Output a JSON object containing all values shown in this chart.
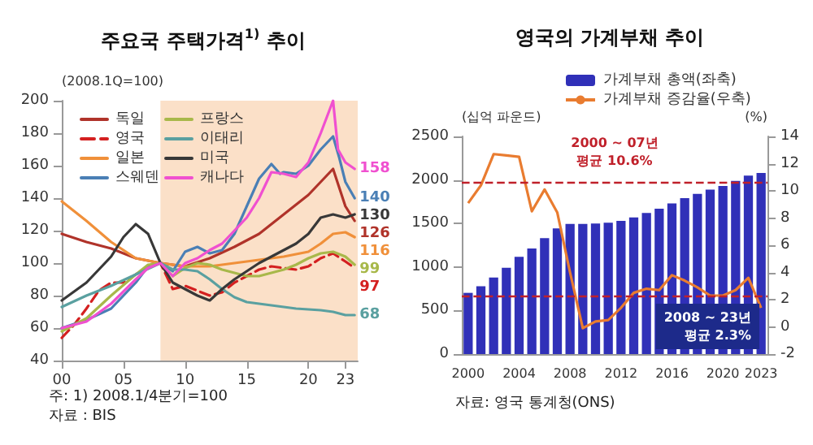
{
  "chart_data": [
    {
      "type": "line",
      "title": "주요국 주택가격$^{1)}$ 추이",
      "ylabel": "(2008.1Q=100)",
      "xlim": [
        2000,
        2024
      ],
      "xticks": [
        {
          "value": 2000,
          "label": "00"
        },
        {
          "value": 2005,
          "label": "05"
        },
        {
          "value": 2010,
          "label": "10"
        },
        {
          "value": 2015,
          "label": "15"
        },
        {
          "value": 2020,
          "label": "20"
        },
        {
          "value": 2023,
          "label": "23"
        }
      ],
      "ylim": [
        40,
        200
      ],
      "yticks": [
        40,
        60,
        80,
        100,
        120,
        140,
        160,
        180,
        200
      ],
      "grid": false,
      "legend": "top left",
      "marker": "none",
      "bands": [
        {
          "axis": "x",
          "from": 2008,
          "to": 2024,
          "color": "#fbe0c8"
        }
      ],
      "annotations": [
        "주: 1) 2008.1/4분기=100",
        "자료 : BIS"
      ],
      "series": [
        {
          "name": "독일",
          "color": "#b0332a",
          "x": [
            2000,
            2002,
            2004,
            2006,
            2008,
            2010,
            2012,
            2014,
            2016,
            2018,
            2020,
            2021,
            2022,
            2023,
            2023.75
          ],
          "values": [
            118,
            113,
            109,
            103,
            100,
            98,
            103,
            110,
            118,
            130,
            142,
            150,
            158,
            135,
            126
          ],
          "value_labels": [
            null,
            null,
            null,
            null,
            null,
            null,
            null,
            null,
            null,
            null,
            null,
            null,
            null,
            null,
            "126"
          ]
        },
        {
          "name": "영국",
          "color": "#d42020",
          "line_style": "dashed",
          "x": [
            2000,
            2001,
            2002,
            2003,
            2004,
            2005,
            2006,
            2007,
            2008,
            2009,
            2010,
            2011,
            2012,
            2013,
            2014,
            2015,
            2016,
            2017,
            2018,
            2019,
            2020,
            2021,
            2022,
            2023,
            2023.75
          ],
          "values": [
            54,
            62,
            72,
            83,
            88,
            88,
            93,
            98,
            100,
            84,
            86,
            83,
            80,
            82,
            88,
            92,
            96,
            98,
            97,
            96,
            98,
            103,
            106,
            101,
            97
          ],
          "value_labels": [
            null,
            null,
            null,
            null,
            null,
            null,
            null,
            null,
            null,
            null,
            null,
            null,
            null,
            null,
            null,
            null,
            null,
            null,
            null,
            null,
            null,
            null,
            null,
            null,
            "97"
          ]
        },
        {
          "name": "일본",
          "color": "#f0903a",
          "x": [
            2000,
            2002,
            2004,
            2006,
            2008,
            2010,
            2012,
            2014,
            2016,
            2018,
            2020,
            2021,
            2022,
            2023,
            2023.75
          ],
          "values": [
            138,
            126,
            113,
            103,
            100,
            98,
            98,
            100,
            102,
            104,
            107,
            112,
            118,
            119,
            116
          ],
          "value_labels": [
            null,
            null,
            null,
            null,
            null,
            null,
            null,
            null,
            null,
            null,
            null,
            null,
            null,
            null,
            "116"
          ]
        },
        {
          "name": "스웨덴",
          "color": "#4a7fb5",
          "x": [
            2000,
            2002,
            2004,
            2006,
            2007,
            2008,
            2009,
            2010,
            2011,
            2012,
            2013,
            2014,
            2015,
            2016,
            2017,
            2017.7,
            2018,
            2019,
            2020,
            2021,
            2022,
            2022.5,
            2023,
            2023.75
          ],
          "values": [
            60,
            65,
            72,
            88,
            98,
            100,
            95,
            107,
            110,
            106,
            108,
            118,
            135,
            152,
            161,
            155,
            156,
            155,
            160,
            170,
            178,
            165,
            150,
            140
          ],
          "value_labels": [
            null,
            null,
            null,
            null,
            null,
            null,
            null,
            null,
            null,
            null,
            null,
            null,
            null,
            null,
            null,
            null,
            null,
            null,
            null,
            null,
            null,
            null,
            null,
            "140"
          ]
        },
        {
          "name": "프랑스",
          "color": "#a8b84a",
          "x": [
            2000,
            2002,
            2004,
            2006,
            2007,
            2008,
            2009,
            2010,
            2011,
            2012,
            2013,
            2014,
            2015,
            2016,
            2017,
            2018,
            2019,
            2020,
            2021,
            2022,
            2023,
            2023.75
          ],
          "values": [
            58,
            66,
            80,
            93,
            99,
            100,
            92,
            97,
            100,
            99,
            96,
            94,
            92,
            92,
            94,
            96,
            99,
            103,
            106,
            107,
            104,
            99
          ],
          "value_labels": [
            null,
            null,
            null,
            null,
            null,
            null,
            null,
            null,
            null,
            null,
            null,
            null,
            null,
            null,
            null,
            null,
            null,
            null,
            null,
            null,
            null,
            "99"
          ]
        },
        {
          "name": "이태리",
          "color": "#5aa0a0",
          "x": [
            2000,
            2002,
            2004,
            2006,
            2008,
            2009,
            2010,
            2011,
            2012,
            2013,
            2014,
            2015,
            2017,
            2019,
            2021,
            2022,
            2023,
            2023.75
          ],
          "values": [
            73,
            80,
            86,
            93,
            100,
            96,
            96,
            95,
            90,
            84,
            79,
            76,
            74,
            72,
            71,
            70,
            68,
            68
          ],
          "value_labels": [
            null,
            null,
            null,
            null,
            null,
            null,
            null,
            null,
            null,
            null,
            null,
            null,
            null,
            null,
            null,
            null,
            null,
            "68"
          ]
        },
        {
          "name": "미국",
          "color": "#383838",
          "x": [
            2000,
            2002,
            2004,
            2005,
            2006,
            2007,
            2008,
            2009,
            2010,
            2011,
            2012,
            2013,
            2014,
            2015,
            2016,
            2017,
            2018,
            2019,
            2020,
            2021,
            2022,
            2023,
            2023.75
          ],
          "values": [
            77,
            88,
            104,
            116,
            124,
            118,
            100,
            88,
            84,
            80,
            77,
            84,
            90,
            95,
            100,
            104,
            108,
            112,
            118,
            128,
            130,
            128,
            130
          ],
          "value_labels": [
            null,
            null,
            null,
            null,
            null,
            null,
            null,
            null,
            null,
            null,
            null,
            null,
            null,
            null,
            null,
            null,
            null,
            null,
            null,
            null,
            null,
            null,
            "130"
          ]
        },
        {
          "name": "캐나다",
          "color": "#f050d0",
          "x": [
            2000,
            2002,
            2004,
            2006,
            2007,
            2008,
            2009,
            2010,
            2011,
            2012,
            2013,
            2014,
            2015,
            2016,
            2017,
            2018,
            2019,
            2020,
            2021,
            2022,
            2022.4,
            2023,
            2023.75
          ],
          "values": [
            60,
            64,
            75,
            90,
            97,
            100,
            92,
            100,
            103,
            108,
            112,
            120,
            128,
            140,
            156,
            155,
            153,
            162,
            180,
            200,
            170,
            162,
            158
          ],
          "value_labels": [
            null,
            null,
            null,
            null,
            null,
            null,
            null,
            null,
            null,
            null,
            null,
            null,
            null,
            null,
            null,
            null,
            null,
            null,
            null,
            null,
            null,
            null,
            "158"
          ]
        }
      ]
    },
    {
      "type": "bar",
      "title": "영국의 가계부채 추이",
      "ylabel": "(십억 파운드)",
      "y2label": "(%)",
      "categories": [
        "2000",
        null,
        null,
        null,
        "2004",
        null,
        null,
        null,
        "2008",
        null,
        null,
        null,
        "2012",
        null,
        null,
        null,
        "2016",
        null,
        null,
        null,
        "2020",
        null,
        null,
        "2023"
      ],
      "ylim": [
        0,
        2500
      ],
      "yticks": [
        0,
        500,
        1000,
        1500,
        2000,
        2500
      ],
      "y2lim": [
        -2,
        14
      ],
      "y2ticks": [
        -2,
        0,
        2,
        4,
        6,
        8,
        10,
        12,
        14
      ],
      "grid": false,
      "legend": "top",
      "ref_lines": [
        {
          "axis": "y2",
          "value": 10.6,
          "label": "2000 ~ 07년\n평균 10.6%",
          "color": "#c0202a",
          "line_style": "dashed"
        },
        {
          "axis": "y2",
          "value": 2.3,
          "label": "2008 ~ 23년\n평균 2.3%",
          "color": "#c0202a",
          "line_style": "dashed"
        }
      ],
      "annotations": [
        "자료: 영국 통계청(ONS)"
      ],
      "series": [
        {
          "name": "가계부채 총액(좌축)",
          "type": "bar",
          "color": "#3030b8",
          "values": [
            703,
            779,
            879,
            992,
            1118,
            1212,
            1331,
            1444,
            1495,
            1495,
            1500,
            1510,
            1530,
            1570,
            1620,
            1670,
            1730,
            1790,
            1840,
            1890,
            1930,
            1990,
            2050,
            2080
          ]
        },
        {
          "name": "가계부채 증감율(우축)",
          "type": "line",
          "axis": "y2",
          "marker": "none",
          "color": "#e97c30",
          "values": [
            9.1,
            10.4,
            12.7,
            12.6,
            12.5,
            8.5,
            10.1,
            8.4,
            4.0,
            -0.1,
            0.4,
            0.5,
            1.4,
            2.5,
            2.8,
            2.7,
            3.8,
            3.4,
            2.9,
            2.3,
            2.3,
            2.7,
            3.6,
            1.4
          ]
        }
      ]
    }
  ]
}
